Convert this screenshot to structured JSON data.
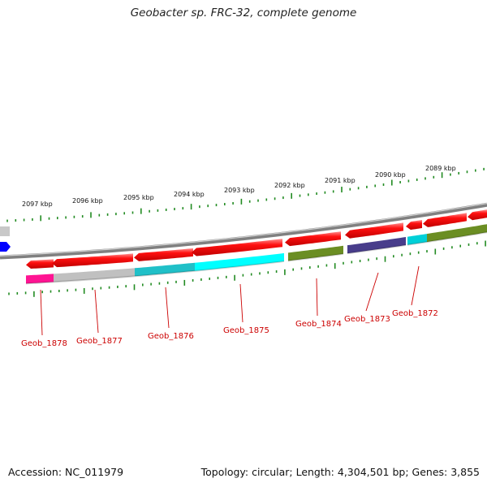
{
  "title": "Geobacter sp. FRC-32, complete genome",
  "footer": {
    "accession": "Accession: NC_011979",
    "summary": "Topology: circular; Length: 4,304,501 bp; Genes: 3,855"
  },
  "colors": {
    "backbone": "#808080",
    "cds_forward": "#ff0000",
    "cds_reverse_left": "#ff0000",
    "tick": "#228B22",
    "label": "#cc0000",
    "edge_gene": "#0000ff"
  },
  "axis": {
    "unit": "kbp",
    "ticks": [
      "2097 kbp",
      "2096 kbp",
      "2095 kbp",
      "2094 kbp",
      "2093 kbp",
      "2092 kbp",
      "2091 kbp",
      "2090 kbp",
      "2089 kbp"
    ]
  },
  "genes": [
    {
      "label": "Geob_1878",
      "color": "#ff1493"
    },
    {
      "label": "Geob_1877",
      "color": "#c0c0c0"
    },
    {
      "label": "Geob_1876",
      "color": "#20c0c8"
    },
    {
      "label": "Geob_1875",
      "color": "#00ffff"
    },
    {
      "label": "Geob_1874",
      "color": "#6b8e23"
    },
    {
      "label": "Geob_1873",
      "color": "#483d8b"
    },
    {
      "label": "Geob_1872",
      "color": "#00d0d8"
    },
    {
      "label": "",
      "color": "#6b8e23"
    }
  ]
}
